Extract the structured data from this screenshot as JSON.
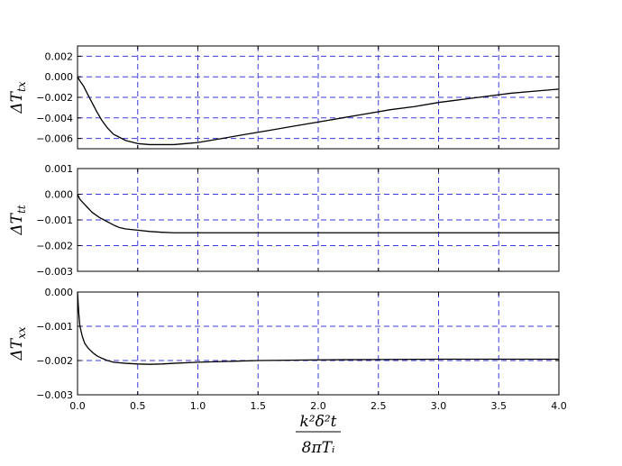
{
  "chart_data": [
    {
      "type": "line",
      "ylabel": "ΔT_tx",
      "ylabel_main": "ΔT",
      "ylabel_sub": "tx",
      "xlim": [
        0.0,
        4.0
      ],
      "ylim": [
        -0.007,
        0.003
      ],
      "x_ticks": [
        "0.0",
        "0.5",
        "1.0",
        "1.5",
        "2.0",
        "2.5",
        "3.0",
        "3.5",
        "4.0"
      ],
      "y_ticks": [
        0.002,
        0.0,
        -0.002,
        -0.004,
        -0.006
      ],
      "y_tick_labels": [
        "0.002",
        "0.000",
        "−0.002",
        "−0.004",
        "−0.006"
      ],
      "grid": true,
      "series": [
        {
          "x": [
            0.0,
            0.02,
            0.05,
            0.08,
            0.12,
            0.16,
            0.2,
            0.25,
            0.3,
            0.4,
            0.5,
            0.6,
            0.7,
            0.8,
            0.9,
            1.0,
            1.2,
            1.4,
            1.6,
            1.8,
            2.0,
            2.2,
            2.4,
            2.6,
            2.8,
            3.0,
            3.2,
            3.4,
            3.6,
            3.8,
            4.0
          ],
          "y": [
            0.0,
            -0.0004,
            -0.0009,
            -0.0016,
            -0.0025,
            -0.0034,
            -0.0042,
            -0.005,
            -0.0056,
            -0.0062,
            -0.0065,
            -0.0066,
            -0.0066,
            -0.0066,
            -0.0065,
            -0.0064,
            -0.006,
            -0.0056,
            -0.0052,
            -0.0048,
            -0.0044,
            -0.004,
            -0.0036,
            -0.0032,
            -0.0029,
            -0.0025,
            -0.0022,
            -0.0019,
            -0.0016,
            -0.0014,
            -0.0012
          ]
        }
      ]
    },
    {
      "type": "line",
      "ylabel": "ΔT_tt",
      "ylabel_main": "ΔT",
      "ylabel_sub": "tt",
      "xlim": [
        0.0,
        4.0
      ],
      "ylim": [
        -0.003,
        0.001
      ],
      "x_ticks": [
        "0.0",
        "0.5",
        "1.0",
        "1.5",
        "2.0",
        "2.5",
        "3.0",
        "3.5",
        "4.0"
      ],
      "y_ticks": [
        0.001,
        0.0,
        -0.001,
        -0.002,
        -0.003
      ],
      "y_tick_labels": [
        "0.001",
        "0.000",
        "−0.001",
        "−0.002",
        "−0.003"
      ],
      "grid": true,
      "series": [
        {
          "x": [
            0.0,
            0.02,
            0.04,
            0.06,
            0.08,
            0.1,
            0.12,
            0.15,
            0.18,
            0.22,
            0.26,
            0.3,
            0.35,
            0.4,
            0.5,
            0.6,
            0.7,
            0.8,
            0.9,
            1.0,
            1.2,
            1.4,
            1.6,
            2.0,
            2.5,
            3.0,
            3.5,
            4.0
          ],
          "y": [
            0.0,
            -0.0002,
            -0.0003,
            -0.0004,
            -0.0005,
            -0.0006,
            -0.0007,
            -0.0008,
            -0.0009,
            -0.001,
            -0.0011,
            -0.0012,
            -0.0013,
            -0.00135,
            -0.0014,
            -0.00145,
            -0.00148,
            -0.0015,
            -0.0015,
            -0.0015,
            -0.0015,
            -0.0015,
            -0.0015,
            -0.0015,
            -0.0015,
            -0.0015,
            -0.0015,
            -0.0015
          ]
        }
      ]
    },
    {
      "type": "line",
      "ylabel": "ΔT_xx",
      "ylabel_main": "ΔT",
      "ylabel_sub": "xx",
      "xlim": [
        0.0,
        4.0
      ],
      "ylim": [
        -0.003,
        0.0
      ],
      "x_ticks": [
        "0.0",
        "0.5",
        "1.0",
        "1.5",
        "2.0",
        "2.5",
        "3.0",
        "3.5",
        "4.0"
      ],
      "y_ticks": [
        0.0,
        -0.001,
        -0.002,
        -0.003
      ],
      "y_tick_labels": [
        "0.000",
        "−0.001",
        "−0.002",
        "−0.003"
      ],
      "grid": true,
      "series": [
        {
          "x": [
            0.0,
            0.01,
            0.02,
            0.04,
            0.06,
            0.08,
            0.1,
            0.13,
            0.16,
            0.2,
            0.25,
            0.3,
            0.4,
            0.5,
            0.6,
            0.7,
            0.8,
            1.0,
            1.2,
            1.5,
            2.0,
            2.5,
            3.0,
            3.5,
            4.0
          ],
          "y": [
            0.0,
            -0.0006,
            -0.001,
            -0.0013,
            -0.0015,
            -0.0016,
            -0.00168,
            -0.00178,
            -0.00186,
            -0.00193,
            -0.002,
            -0.00205,
            -0.00208,
            -0.0021,
            -0.00211,
            -0.0021,
            -0.00208,
            -0.00205,
            -0.00203,
            -0.002,
            -0.00198,
            -0.00197,
            -0.00196,
            -0.00196,
            -0.00196
          ]
        }
      ]
    }
  ],
  "xlabel": {
    "numerator": "k²δ²t",
    "denominator": "8πTᵢ"
  }
}
